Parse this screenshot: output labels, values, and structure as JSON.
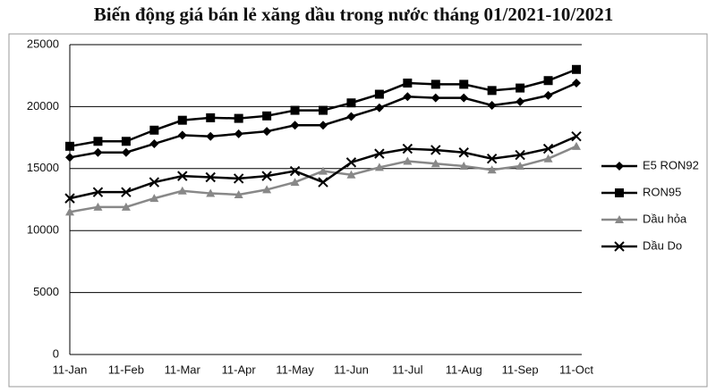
{
  "chart_data": {
    "type": "line",
    "title": "Biến động giá bán lẻ xăng dầu trong nước tháng 01/2021-10/2021",
    "categories": [
      "11-Jan",
      null,
      "11-Feb",
      null,
      "11-Mar",
      null,
      "11-Apr",
      null,
      "11-May",
      null,
      "11-Jun",
      null,
      "11-Jul",
      null,
      "11-Aug",
      null,
      "11-Sep",
      null,
      "11-Oct"
    ],
    "series": [
      {
        "name": "E5 RON92",
        "color": "#000000",
        "marker": "diamond",
        "values": [
          15900,
          16300,
          16300,
          17000,
          17700,
          17600,
          17800,
          18000,
          18500,
          18500,
          19200,
          19900,
          20800,
          20700,
          20700,
          20100,
          20400,
          20900,
          21900
        ]
      },
      {
        "name": "RON95",
        "color": "#000000",
        "marker": "square",
        "values": [
          16800,
          17200,
          17200,
          18100,
          18900,
          19100,
          19050,
          19250,
          19700,
          19700,
          20300,
          21000,
          21900,
          21800,
          21800,
          21300,
          21500,
          22100,
          23000
        ]
      },
      {
        "name": "Dầu hỏa",
        "color": "#888888",
        "marker": "triangle",
        "values": [
          11500,
          11900,
          11900,
          12600,
          13200,
          13000,
          12900,
          13300,
          13900,
          14800,
          14500,
          15100,
          15600,
          15400,
          15200,
          14900,
          15200,
          15800,
          16800
        ]
      },
      {
        "name": "Dầu Do",
        "color": "#000000",
        "marker": "x",
        "values": [
          12600,
          13100,
          13100,
          13900,
          14400,
          14300,
          14200,
          14400,
          14800,
          13900,
          15500,
          16200,
          16600,
          16500,
          16300,
          15800,
          16100,
          16600,
          17600
        ]
      }
    ],
    "ylim": [
      0,
      25000
    ],
    "yticks": [
      0,
      5000,
      10000,
      15000,
      20000,
      25000
    ],
    "grid": true,
    "legend": "right"
  }
}
